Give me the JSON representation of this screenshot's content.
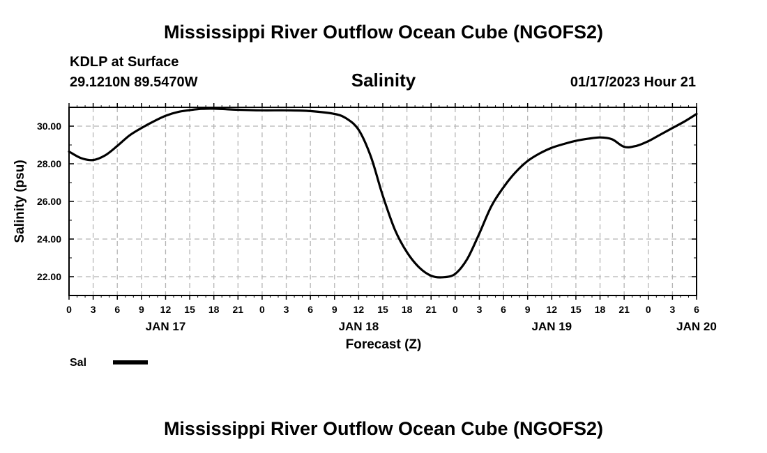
{
  "header": {
    "main_title": "Mississippi River Outflow Ocean Cube (NGOFS2)",
    "station": "KDLP at Surface",
    "coords": "29.1210N  89.5470W",
    "plot_title": "Salinity",
    "datetime": "01/17/2023 Hour 21"
  },
  "footer": {
    "title": "Mississippi River Outflow Ocean Cube (NGOFS2)"
  },
  "legend": {
    "label": "Sal",
    "color": "#000000"
  },
  "chart_data": {
    "type": "line",
    "title": "Salinity",
    "xlabel": "Forecast (Z)",
    "ylabel": "Salinity (psu)",
    "xlim": [
      0,
      78
    ],
    "ylim": [
      21,
      31
    ],
    "grid": true,
    "x_tick_labels": [
      "0",
      "3",
      "6",
      "9",
      "12",
      "15",
      "18",
      "21",
      "0",
      "3",
      "6",
      "9",
      "12",
      "15",
      "18",
      "21",
      "0",
      "3",
      "6",
      "9",
      "12",
      "15",
      "18",
      "21",
      "0",
      "3",
      "6"
    ],
    "day_labels": [
      {
        "label": "JAN 17",
        "x": 12
      },
      {
        "label": "JAN 18",
        "x": 36
      },
      {
        "label": "JAN 19",
        "x": 60
      },
      {
        "label": "JAN 20",
        "x": 78
      }
    ],
    "y_ticks": [
      22,
      24,
      26,
      28,
      30
    ],
    "y_tick_labels": [
      "22.00",
      "24.00",
      "26.00",
      "28.00",
      "30.00"
    ],
    "series": [
      {
        "name": "Sal",
        "color": "#000000",
        "x": [
          0,
          1.5,
          3,
          4.5,
          6,
          7.5,
          9,
          10.5,
          12,
          13.5,
          15,
          16.5,
          18,
          19.5,
          21,
          24,
          27,
          30,
          33,
          34.5,
          36,
          37.5,
          39,
          40.5,
          42,
          43.5,
          45,
          46.5,
          48,
          49.5,
          51,
          52.5,
          54,
          55.5,
          57,
          58.5,
          60,
          61.5,
          63,
          64.5,
          66,
          67.5,
          69,
          70.5,
          72,
          73.5,
          75,
          76.5,
          78
        ],
        "values": [
          28.65,
          28.3,
          28.2,
          28.45,
          28.95,
          29.5,
          29.9,
          30.25,
          30.55,
          30.75,
          30.85,
          30.92,
          30.93,
          30.9,
          30.87,
          30.84,
          30.84,
          30.8,
          30.65,
          30.4,
          29.8,
          28.4,
          26.3,
          24.5,
          23.3,
          22.5,
          22.05,
          21.97,
          22.15,
          22.95,
          24.3,
          25.75,
          26.75,
          27.55,
          28.15,
          28.55,
          28.85,
          29.05,
          29.22,
          29.33,
          29.4,
          29.3,
          28.9,
          28.95,
          29.2,
          29.55,
          29.9,
          30.25,
          30.65
        ]
      }
    ]
  }
}
